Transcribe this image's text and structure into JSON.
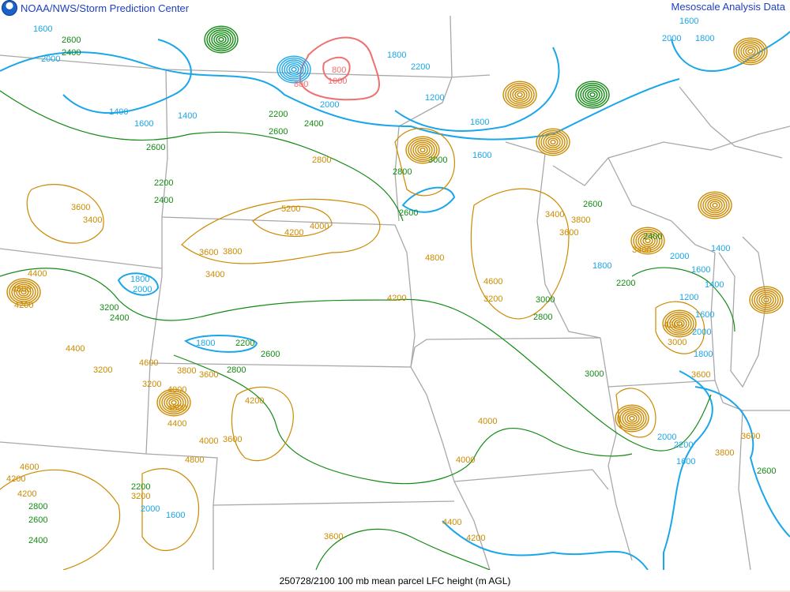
{
  "header": {
    "left_title": "NOAA/NWS/Storm Prediction Center",
    "right_title": "Mesoscale Analysis Data",
    "logo_icon": "noaa-logo-icon"
  },
  "footer": {
    "caption": "250728/2100 100 mb mean parcel LFC height (m AGL)"
  },
  "colors": {
    "blue": "#1aa6ea",
    "green": "#138a13",
    "orange": "#cc8a00",
    "red": "#f07070",
    "borders": "#a8a8a8",
    "title": "#1f3fbf"
  },
  "contour_labels": [
    {
      "text": "1600",
      "color": "blue"
    },
    {
      "text": "2600",
      "color": "green"
    },
    {
      "text": "2400",
      "color": "green"
    },
    {
      "text": "2000",
      "color": "blue"
    },
    {
      "text": "1400",
      "color": "blue"
    },
    {
      "text": "1600",
      "color": "blue"
    },
    {
      "text": "1400",
      "color": "blue"
    },
    {
      "text": "2600",
      "color": "green"
    },
    {
      "text": "3600",
      "color": "orange"
    },
    {
      "text": "3400",
      "color": "orange"
    },
    {
      "text": "2200",
      "color": "green"
    },
    {
      "text": "2400",
      "color": "green"
    },
    {
      "text": "800",
      "color": "red"
    },
    {
      "text": "1000",
      "color": "red"
    },
    {
      "text": "800",
      "color": "red"
    },
    {
      "text": "2000",
      "color": "blue"
    },
    {
      "text": "2200",
      "color": "green"
    },
    {
      "text": "2400",
      "color": "green"
    },
    {
      "text": "2600",
      "color": "green"
    },
    {
      "text": "2800",
      "color": "orange"
    },
    {
      "text": "1800",
      "color": "blue"
    },
    {
      "text": "1200",
      "color": "blue"
    },
    {
      "text": "1600",
      "color": "blue"
    },
    {
      "text": "2200",
      "color": "blue"
    },
    {
      "text": "1600",
      "color": "blue"
    },
    {
      "text": "2000",
      "color": "blue"
    },
    {
      "text": "1800",
      "color": "blue"
    },
    {
      "text": "1600",
      "color": "blue"
    },
    {
      "text": "5200",
      "color": "orange"
    },
    {
      "text": "4200",
      "color": "orange"
    },
    {
      "text": "4000",
      "color": "orange"
    },
    {
      "text": "3600",
      "color": "orange"
    },
    {
      "text": "3800",
      "color": "orange"
    },
    {
      "text": "3400",
      "color": "orange"
    },
    {
      "text": "2800",
      "color": "green"
    },
    {
      "text": "2600",
      "color": "green"
    },
    {
      "text": "3000",
      "color": "green"
    },
    {
      "text": "1800",
      "color": "blue"
    },
    {
      "text": "2200",
      "color": "green"
    },
    {
      "text": "2600",
      "color": "green"
    },
    {
      "text": "2800",
      "color": "green"
    },
    {
      "text": "1800",
      "color": "blue"
    },
    {
      "text": "2000",
      "color": "blue"
    },
    {
      "text": "3200",
      "color": "green"
    },
    {
      "text": "2400",
      "color": "green"
    },
    {
      "text": "4400",
      "color": "orange"
    },
    {
      "text": "4600",
      "color": "orange"
    },
    {
      "text": "4200",
      "color": "orange"
    },
    {
      "text": "4400",
      "color": "orange"
    },
    {
      "text": "3200",
      "color": "orange"
    },
    {
      "text": "4600",
      "color": "orange"
    },
    {
      "text": "3200",
      "color": "orange"
    },
    {
      "text": "3800",
      "color": "orange"
    },
    {
      "text": "3600",
      "color": "orange"
    },
    {
      "text": "4000",
      "color": "orange"
    },
    {
      "text": "4800",
      "color": "orange"
    },
    {
      "text": "4400",
      "color": "orange"
    },
    {
      "text": "4200",
      "color": "orange"
    },
    {
      "text": "4000",
      "color": "orange"
    },
    {
      "text": "3600",
      "color": "orange"
    },
    {
      "text": "4800",
      "color": "orange"
    },
    {
      "text": "4600",
      "color": "orange"
    },
    {
      "text": "4200",
      "color": "orange"
    },
    {
      "text": "4200",
      "color": "orange"
    },
    {
      "text": "2800",
      "color": "green"
    },
    {
      "text": "2600",
      "color": "green"
    },
    {
      "text": "2400",
      "color": "green"
    },
    {
      "text": "2200",
      "color": "green"
    },
    {
      "text": "3200",
      "color": "orange"
    },
    {
      "text": "2000",
      "color": "blue"
    },
    {
      "text": "1600",
      "color": "blue"
    },
    {
      "text": "3600",
      "color": "orange"
    },
    {
      "text": "4200",
      "color": "orange"
    },
    {
      "text": "4000",
      "color": "orange"
    },
    {
      "text": "4000",
      "color": "orange"
    },
    {
      "text": "4400",
      "color": "orange"
    },
    {
      "text": "4200",
      "color": "orange"
    },
    {
      "text": "4800",
      "color": "orange"
    },
    {
      "text": "4600",
      "color": "orange"
    },
    {
      "text": "3200",
      "color": "orange"
    },
    {
      "text": "3000",
      "color": "green"
    },
    {
      "text": "2800",
      "color": "green"
    },
    {
      "text": "2600",
      "color": "green"
    },
    {
      "text": "3400",
      "color": "orange"
    },
    {
      "text": "3600",
      "color": "orange"
    },
    {
      "text": "3800",
      "color": "orange"
    },
    {
      "text": "2400",
      "color": "green"
    },
    {
      "text": "3400",
      "color": "orange"
    },
    {
      "text": "1800",
      "color": "blue"
    },
    {
      "text": "2200",
      "color": "green"
    },
    {
      "text": "2000",
      "color": "blue"
    },
    {
      "text": "1600",
      "color": "blue"
    },
    {
      "text": "1200",
      "color": "blue"
    },
    {
      "text": "1400",
      "color": "blue"
    },
    {
      "text": "1400",
      "color": "blue"
    },
    {
      "text": "1600",
      "color": "blue"
    },
    {
      "text": "2000",
      "color": "blue"
    },
    {
      "text": "1800",
      "color": "blue"
    },
    {
      "text": "4200",
      "color": "orange"
    },
    {
      "text": "3000",
      "color": "orange"
    },
    {
      "text": "3600",
      "color": "orange"
    },
    {
      "text": "3000",
      "color": "green"
    },
    {
      "text": "2000",
      "color": "blue"
    },
    {
      "text": "2200",
      "color": "blue"
    },
    {
      "text": "1600",
      "color": "blue"
    },
    {
      "text": "3600",
      "color": "orange"
    },
    {
      "text": "2600",
      "color": "green"
    },
    {
      "text": "3800",
      "color": "orange"
    }
  ]
}
